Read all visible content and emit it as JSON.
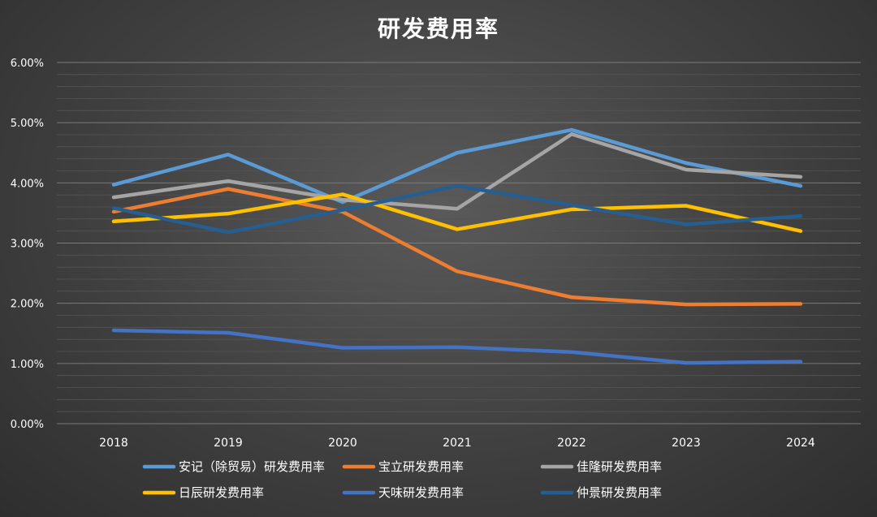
{
  "chart_data": {
    "type": "line",
    "title": "研发费用率",
    "xlabel": "",
    "ylabel": "",
    "categories": [
      "2018",
      "2019",
      "2020",
      "2021",
      "2022",
      "2023",
      "2024"
    ],
    "y_ticks": [
      "0.00%",
      "1.00%",
      "2.00%",
      "3.00%",
      "4.00%",
      "5.00%",
      "6.00%"
    ],
    "ylim": [
      0,
      6
    ],
    "grid": true,
    "legend_position": "bottom",
    "series": [
      {
        "name": "安记（除贸易）研发费用率",
        "color": "#5b9bd5",
        "values": [
          3.97,
          4.47,
          3.68,
          4.5,
          4.88,
          4.33,
          3.95
        ]
      },
      {
        "name": "宝立研发费用率",
        "color": "#ed7d31",
        "values": [
          3.52,
          3.9,
          3.52,
          2.53,
          2.1,
          1.98,
          1.99
        ]
      },
      {
        "name": "佳隆研发费用率",
        "color": "#a5a5a5",
        "values": [
          3.76,
          4.03,
          3.72,
          3.57,
          4.81,
          4.22,
          4.1
        ]
      },
      {
        "name": "日辰研发费用率",
        "color": "#ffc000",
        "values": [
          3.36,
          3.49,
          3.81,
          3.23,
          3.56,
          3.62,
          3.2
        ]
      },
      {
        "name": "天味研发费用率",
        "color": "#4472c4",
        "values": [
          1.55,
          1.51,
          1.26,
          1.27,
          1.19,
          1.01,
          1.03
        ]
      },
      {
        "name": "仲景研发费用率",
        "color": "#255e91",
        "values": [
          3.58,
          3.18,
          3.55,
          3.95,
          3.63,
          3.31,
          3.45
        ]
      }
    ]
  }
}
